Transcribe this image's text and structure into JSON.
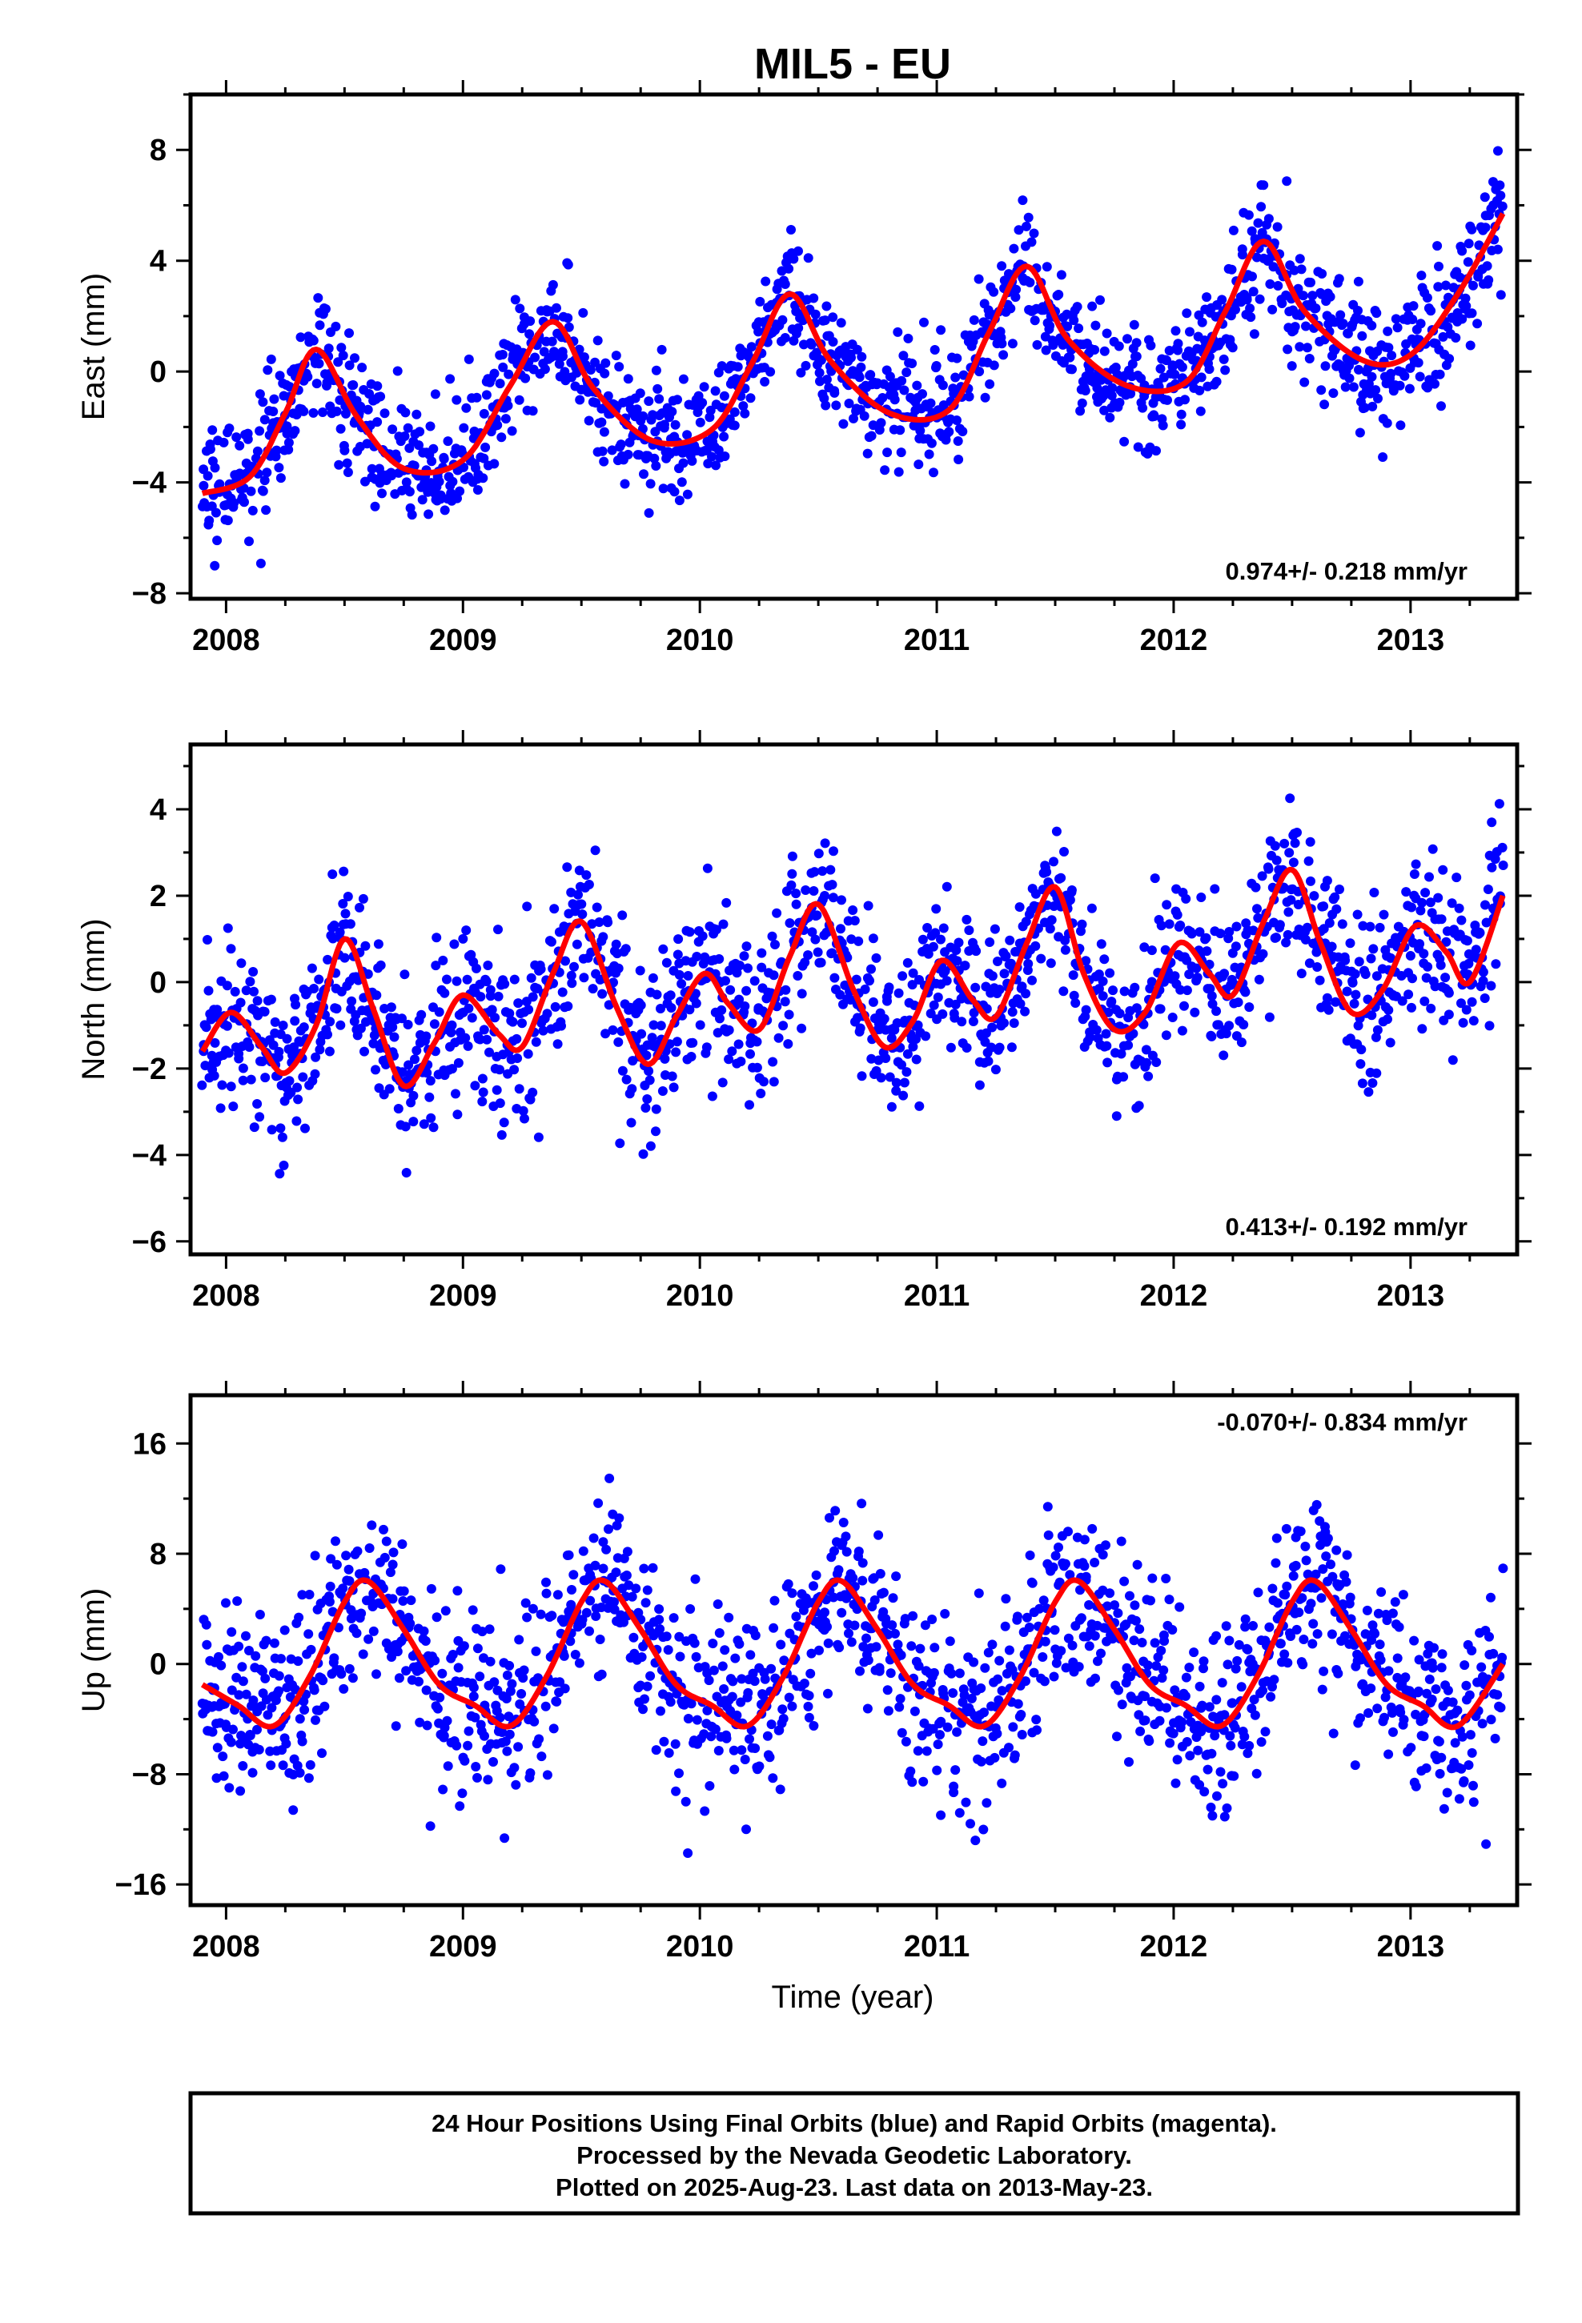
{
  "title": "MIL5 - EU",
  "xlabel": "Time (year)",
  "colors": {
    "points": "#0000ff",
    "fit": "#ff0000",
    "frame": "#000000"
  },
  "footer": {
    "line1": "24 Hour Positions Using Final Orbits (blue) and Rapid Orbits (magenta).",
    "line2": "Processed by the Nevada Geodetic Laboratory.",
    "line3": "Plotted on 2025-Aug-23. Last data on 2013-May-23."
  },
  "chart_data": [
    {
      "type": "scatter",
      "ylabel": "East (mm)",
      "rate_label": "0.974+/- 0.218 mm/yr",
      "xlim": [
        2007.85,
        2013.45
      ],
      "ylim": [
        -8.2,
        10.0
      ],
      "xticks": [
        2008,
        2009,
        2010,
        2011,
        2012,
        2013
      ],
      "yticks": [
        -8,
        -4,
        0,
        4,
        8
      ],
      "data_start": 2007.9,
      "data_end": 2013.39,
      "series": [
        {
          "kind": "fit",
          "x": [
            2007.9,
            2008.1,
            2008.25,
            2008.38,
            2008.55,
            2008.75,
            2009.0,
            2009.2,
            2009.38,
            2009.55,
            2009.8,
            2010.05,
            2010.22,
            2010.38,
            2010.55,
            2010.8,
            2011.05,
            2011.22,
            2011.38,
            2011.55,
            2011.8,
            2012.05,
            2012.22,
            2012.38,
            2012.55,
            2012.8,
            2013.0,
            2013.2,
            2013.39
          ],
          "values": [
            -4.4,
            -3.8,
            -1.5,
            0.8,
            -1.6,
            -3.5,
            -3.2,
            -0.5,
            1.8,
            -0.6,
            -2.5,
            -2.1,
            0.3,
            2.8,
            0.4,
            -1.5,
            -1.4,
            1.4,
            3.8,
            1.2,
            -0.5,
            -0.4,
            2.2,
            4.7,
            2.2,
            0.4,
            0.6,
            2.8,
            5.7
          ]
        }
      ]
    },
    {
      "type": "scatter",
      "ylabel": "North (mm)",
      "rate_label": "0.413+/- 0.192 mm/yr",
      "xlim": [
        2007.85,
        2013.45
      ],
      "ylim": [
        -6.3,
        5.5
      ],
      "xticks": [
        2008,
        2009,
        2010,
        2011,
        2012,
        2013
      ],
      "yticks": [
        -6,
        -4,
        -2,
        0,
        2,
        4
      ],
      "data_start": 2007.9,
      "data_end": 2013.39,
      "series": [
        {
          "kind": "fit",
          "x": [
            2007.9,
            2008.02,
            2008.15,
            2008.25,
            2008.38,
            2008.5,
            2008.62,
            2008.75,
            2008.88,
            2009.0,
            2009.15,
            2009.25,
            2009.38,
            2009.5,
            2009.65,
            2009.78,
            2009.9,
            2010.02,
            2010.12,
            2010.25,
            2010.38,
            2010.5,
            2010.65,
            2010.78,
            2010.9,
            2011.02,
            2011.15,
            2011.25,
            2011.38,
            2011.5,
            2011.62,
            2011.75,
            2011.88,
            2012.02,
            2012.15,
            2012.25,
            2012.38,
            2012.5,
            2012.62,
            2012.75,
            2012.88,
            2013.02,
            2013.15,
            2013.25,
            2013.39
          ],
          "values": [
            -1.6,
            -0.7,
            -1.5,
            -2.1,
            -1.0,
            1.0,
            -0.6,
            -2.4,
            -1.4,
            -0.3,
            -1.2,
            -1.5,
            0.2,
            1.4,
            -0.6,
            -1.9,
            -0.8,
            0.2,
            -0.5,
            -1.1,
            0.6,
            1.8,
            -0.2,
            -1.5,
            -0.9,
            0.5,
            -0.4,
            -0.8,
            0.9,
            2.2,
            0.2,
            -1.1,
            -0.7,
            0.9,
            0.2,
            -0.3,
            1.4,
            2.6,
            0.9,
            -0.7,
            -0.2,
            1.3,
            0.7,
            0.0,
            2.0
          ]
        }
      ]
    },
    {
      "type": "scatter",
      "ylabel": "Up (mm)",
      "rate_label": "-0.070+/- 0.834 mm/yr",
      "xlim": [
        2007.85,
        2013.45
      ],
      "ylim": [
        -17.5,
        19.5
      ],
      "xticks": [
        2008,
        2009,
        2010,
        2011,
        2012,
        2013
      ],
      "yticks": [
        -16,
        -8,
        0,
        8,
        16
      ],
      "data_start": 2007.9,
      "data_end": 2013.39,
      "series": [
        {
          "kind": "fit",
          "x": [
            2007.9,
            2008.05,
            2008.2,
            2008.35,
            2008.5,
            2008.6,
            2008.75,
            2008.9,
            2009.05,
            2009.2,
            2009.35,
            2009.5,
            2009.6,
            2009.75,
            2009.9,
            2010.05,
            2010.2,
            2010.35,
            2010.5,
            2010.6,
            2010.75,
            2010.9,
            2011.05,
            2011.2,
            2011.35,
            2011.5,
            2011.6,
            2011.75,
            2011.9,
            2012.05,
            2012.2,
            2012.35,
            2012.5,
            2012.6,
            2012.75,
            2012.9,
            2013.05,
            2013.2,
            2013.39
          ],
          "values": [
            -1.5,
            -3.0,
            -4.5,
            -1.0,
            4.5,
            6.0,
            2.5,
            -1.5,
            -3.0,
            -4.5,
            -1.0,
            4.5,
            6.0,
            2.5,
            -1.5,
            -3.0,
            -4.5,
            -1.0,
            4.5,
            6.0,
            2.5,
            -1.5,
            -3.0,
            -4.5,
            -1.0,
            4.5,
            6.0,
            2.5,
            -1.5,
            -3.0,
            -4.5,
            -1.0,
            4.5,
            6.0,
            2.5,
            -1.5,
            -3.0,
            -4.5,
            0.0
          ]
        }
      ]
    }
  ]
}
